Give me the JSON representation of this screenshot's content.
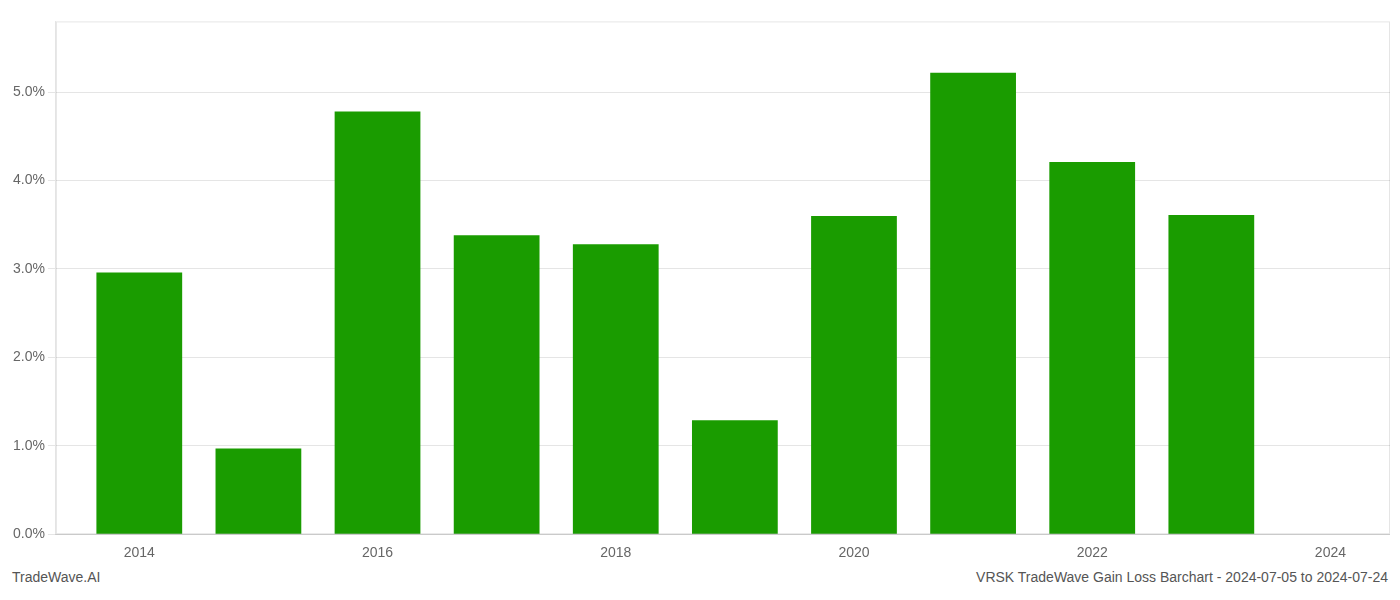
{
  "chart_data": {
    "type": "bar",
    "x": [
      2014,
      2015,
      2016,
      2017,
      2018,
      2019,
      2020,
      2021,
      2022,
      2023
    ],
    "values": [
      0.0296,
      0.0097,
      0.0478,
      0.0338,
      0.0328,
      0.0129,
      0.036,
      0.0522,
      0.0421,
      0.0361
    ],
    "color": "#1a9c00",
    "xlim": [
      2013.3,
      2024.5
    ],
    "xticks": [
      2014,
      2016,
      2018,
      2020,
      2022,
      2024
    ],
    "ylim": [
      0,
      0.058
    ],
    "yticks": [
      {
        "value": 0.0,
        "label": "0.0%"
      },
      {
        "value": 0.01,
        "label": "1.0%"
      },
      {
        "value": 0.02,
        "label": "2.0%"
      },
      {
        "value": 0.03,
        "label": "3.0%"
      },
      {
        "value": 0.04,
        "label": "4.0%"
      },
      {
        "value": 0.05,
        "label": "5.0%"
      }
    ],
    "grid": true,
    "annotations": [
      "TradeWave.AI",
      "VRSK TradeWave Gain Loss Barchart - 2024-07-05 to 2024-07-24"
    ]
  }
}
